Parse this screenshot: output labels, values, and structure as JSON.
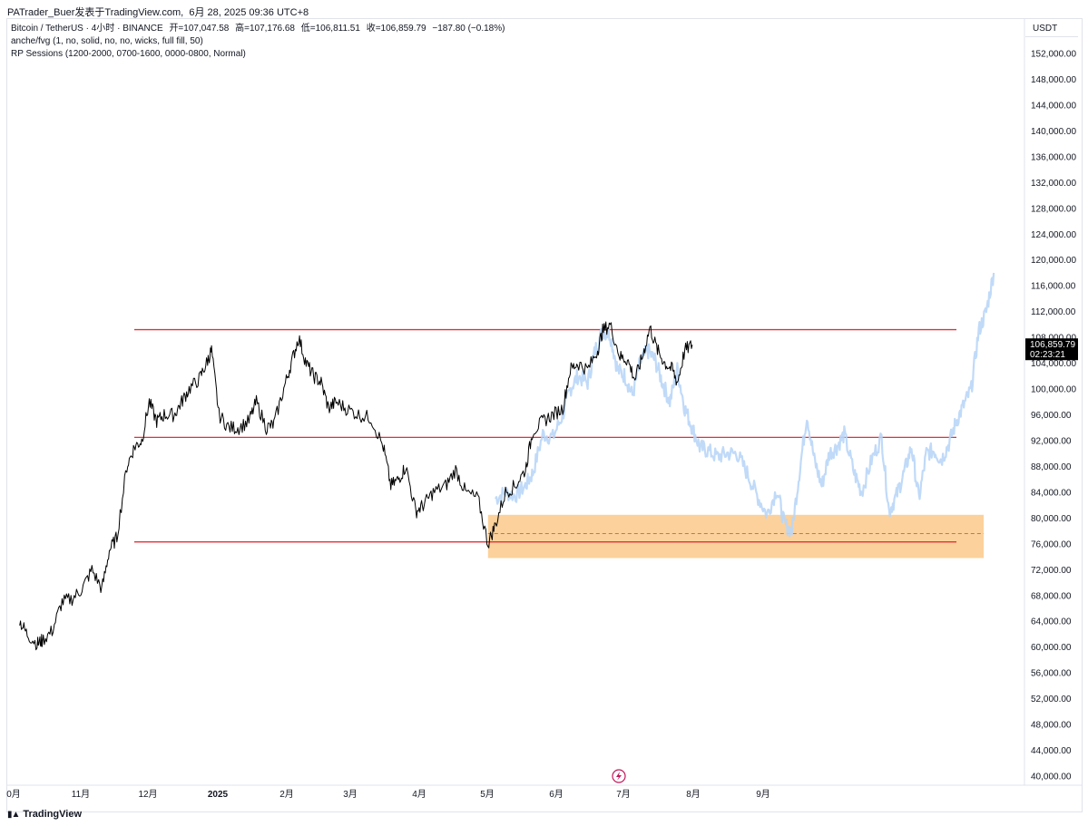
{
  "header": {
    "publisher": "PATrader_Buer发表于TradingView.com",
    "date": "6月 28, 2025 09:36 UTC+8"
  },
  "legend": {
    "symbol": "Bitcoin / TetherUS · 4小时 · BINANCE",
    "open": "开=107,047.58",
    "high": "高=107,176.68",
    "low": "低=106,811.51",
    "close": "收=106,859.79",
    "change": "−187.80 (−0.18%)",
    "indicator1": "anche/fvg (1, no, solid, no, no, wicks, full fill, 50)",
    "indicator2": "RP Sessions (1200-2000, 0700-1600, 0000-0800, Normal)"
  },
  "price_axis": {
    "currency": "USDT",
    "ticks": [
      "152,000.00",
      "148,000.00",
      "144,000.00",
      "140,000.00",
      "136,000.00",
      "132,000.00",
      "128,000.00",
      "124,000.00",
      "120,000.00",
      "116,000.00",
      "112,000.00",
      "108,000.00",
      "104,000.00",
      "100,000.00",
      "96,000.00",
      "92,000.00",
      "88,000.00",
      "84,000.00",
      "80,000.00",
      "76,000.00",
      "72,000.00",
      "68,000.00",
      "64,000.00",
      "60,000.00",
      "56,000.00",
      "52,000.00",
      "48,000.00",
      "44,000.00",
      "40,000.00"
    ],
    "current_price_label": "106,859.79",
    "countdown_label": "02:23:21"
  },
  "time_axis": {
    "labels": [
      "0月",
      "11月",
      "12月",
      "2025",
      "2月",
      "3月",
      "4月",
      "5月",
      "6月",
      "7月",
      "8月",
      "9月"
    ]
  },
  "footer": {
    "brand": "TradingView"
  },
  "colors": {
    "price_line": "#000000",
    "projection": "#b9d6f7",
    "level_lines": "#e0313a",
    "zone_fill": "#fcc98a",
    "zone_mid": "#9c6b8d",
    "price_badge_bg": "#000000"
  },
  "chart_data": {
    "type": "line",
    "title": "",
    "xlabel": "",
    "ylabel": "",
    "ylim": [
      40000,
      152000
    ],
    "x_range": [
      "2024-10-01",
      "2025-10-31"
    ],
    "series": [
      {
        "role": "actual",
        "x": [
          "2024-10-01",
          "2024-10-04",
          "2024-10-08",
          "2024-10-10",
          "2024-10-14",
          "2024-10-18",
          "2024-10-22",
          "2024-10-26",
          "2024-10-30",
          "2024-11-03",
          "2024-11-06",
          "2024-11-09",
          "2024-11-13",
          "2024-11-16",
          "2024-11-19",
          "2024-11-22",
          "2024-11-25",
          "2024-11-28",
          "2024-12-02",
          "2024-12-05",
          "2024-12-08",
          "2024-12-12",
          "2024-12-15",
          "2024-12-17",
          "2024-12-20",
          "2024-12-24",
          "2024-12-28",
          "2025-01-01",
          "2025-01-04",
          "2025-01-08",
          "2025-01-11",
          "2025-01-15",
          "2025-01-18",
          "2025-01-21",
          "2025-01-24",
          "2025-01-27",
          "2025-01-30",
          "2025-02-02",
          "2025-02-05",
          "2025-02-09",
          "2025-02-14",
          "2025-02-19",
          "2025-02-24",
          "2025-02-27",
          "2025-03-02",
          "2025-03-05",
          "2025-03-09",
          "2025-03-12",
          "2025-03-16",
          "2025-03-21",
          "2025-03-25",
          "2025-03-29",
          "2025-04-03",
          "2025-04-07",
          "2025-04-10",
          "2025-04-14",
          "2025-04-18",
          "2025-04-22",
          "2025-04-25",
          "2025-04-29",
          "2025-05-03",
          "2025-05-07",
          "2025-05-10",
          "2025-05-13",
          "2025-05-17",
          "2025-05-21",
          "2025-05-23",
          "2025-05-26",
          "2025-05-30",
          "2025-06-02",
          "2025-06-05",
          "2025-06-08",
          "2025-06-11",
          "2025-06-14",
          "2025-06-17",
          "2025-06-20",
          "2025-06-22",
          "2025-06-25",
          "2025-06-28"
        ],
        "values": [
          64000,
          62000,
          60500,
          61000,
          62500,
          67000,
          67500,
          69000,
          72000,
          69000,
          75000,
          77000,
          88000,
          91000,
          92000,
          98000,
          95000,
          96000,
          96000,
          98000,
          100000,
          101500,
          104000,
          106000,
          96000,
          94000,
          94000,
          95000,
          98000,
          94000,
          94500,
          100000,
          104000,
          108000,
          104000,
          102000,
          101000,
          97000,
          98000,
          97000,
          96000,
          95500,
          91000,
          85000,
          86000,
          88000,
          81000,
          82000,
          84000,
          85000,
          87500,
          84000,
          83000,
          76000,
          79000,
          84000,
          85000,
          87500,
          93500,
          95000,
          96000,
          97000,
          103000,
          104000,
          103000,
          106000,
          109000,
          110000,
          105000,
          104500,
          101500,
          105000,
          109500,
          106000,
          104000,
          103000,
          101000,
          106000,
          106860
        ]
      },
      {
        "role": "projection",
        "x": [
          "2025-04-10",
          "2025-04-14",
          "2025-04-18",
          "2025-04-22",
          "2025-04-25",
          "2025-04-29",
          "2025-05-03",
          "2025-05-07",
          "2025-05-10",
          "2025-05-13",
          "2025-05-17",
          "2025-05-20",
          "2025-05-23",
          "2025-05-26",
          "2025-05-29",
          "2025-06-01",
          "2025-06-04",
          "2025-06-07",
          "2025-06-10",
          "2025-06-13",
          "2025-06-16",
          "2025-06-19",
          "2025-06-22",
          "2025-06-25",
          "2025-06-28",
          "2025-07-01",
          "2025-07-04",
          "2025-07-08",
          "2025-07-12",
          "2025-07-16",
          "2025-07-20",
          "2025-07-24",
          "2025-07-28",
          "2025-08-01",
          "2025-08-04",
          "2025-08-07",
          "2025-08-10",
          "2025-08-13",
          "2025-08-16",
          "2025-08-19",
          "2025-08-22",
          "2025-08-25",
          "2025-08-28",
          "2025-09-01",
          "2025-09-04",
          "2025-09-08",
          "2025-09-12",
          "2025-09-15",
          "2025-09-18",
          "2025-09-21",
          "2025-09-24",
          "2025-09-27",
          "2025-09-30",
          "2025-10-03",
          "2025-10-06",
          "2025-10-09",
          "2025-10-12",
          "2025-10-15",
          "2025-10-18",
          "2025-10-21",
          "2025-10-24",
          "2025-10-27"
        ],
        "values": [
          83000,
          84000,
          83500,
          85000,
          87000,
          93000,
          92500,
          96000,
          100000,
          102000,
          101000,
          106000,
          109000,
          108500,
          103000,
          102000,
          99000,
          104000,
          106000,
          104500,
          101000,
          98000,
          103000,
          97000,
          94000,
          91000,
          90500,
          89500,
          90000,
          90000,
          87000,
          83500,
          80500,
          84500,
          79000,
          78000,
          87000,
          96000,
          89000,
          85000,
          90000,
          91000,
          93000,
          87000,
          84000,
          89000,
          92500,
          81000,
          83500,
          87000,
          91000,
          83000,
          90000,
          90500,
          89000,
          91500,
          95000,
          97500,
          100000,
          109000,
          112000,
          118000
        ],
        "values_note": ""
      }
    ],
    "horizontal_levels": [
      109200,
      92500,
      76300
    ],
    "zone": {
      "x_start": "2025-04-07",
      "x_end": "2025-10-23",
      "top": 80500,
      "bottom": 73800,
      "mid": 77600
    },
    "current_price": 106859.79,
    "grid": false,
    "legend_position": "top-left"
  }
}
